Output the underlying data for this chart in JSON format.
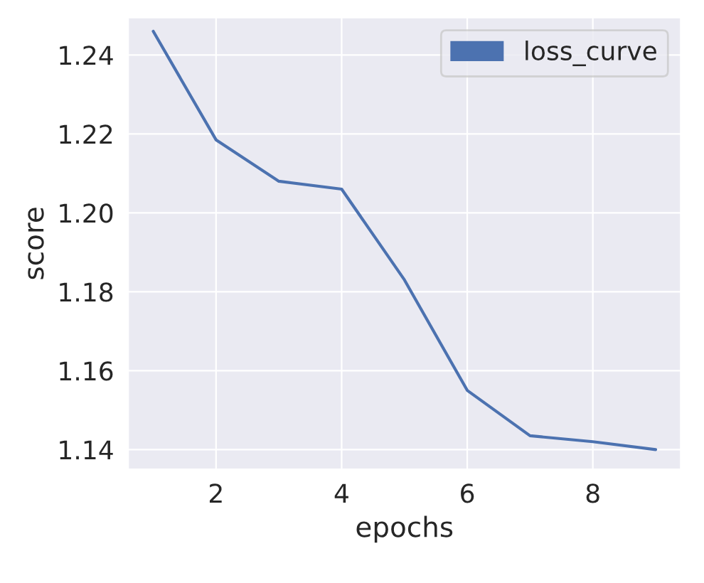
{
  "chart_data": {
    "type": "line",
    "xlabel": "epochs",
    "ylabel": "score",
    "x": [
      1,
      2,
      3,
      4,
      5,
      6,
      7,
      8,
      9
    ],
    "series": [
      {
        "name": "loss_curve",
        "color": "#4c72b0",
        "values": [
          1.246,
          1.2185,
          1.208,
          1.206,
          1.183,
          1.155,
          1.1435,
          1.142,
          1.14
        ]
      }
    ],
    "xlim": [
      0.6,
      9.4
    ],
    "ylim": [
      1.135,
      1.2495
    ],
    "xticks": [
      2,
      4,
      6,
      8
    ],
    "yticks": [
      1.14,
      1.16,
      1.18,
      {
        "value": 1.2,
        "label": "1.20"
      },
      1.22,
      1.24
    ],
    "grid": true,
    "legend": "top right",
    "marker": "none",
    "line_style": "solid"
  }
}
